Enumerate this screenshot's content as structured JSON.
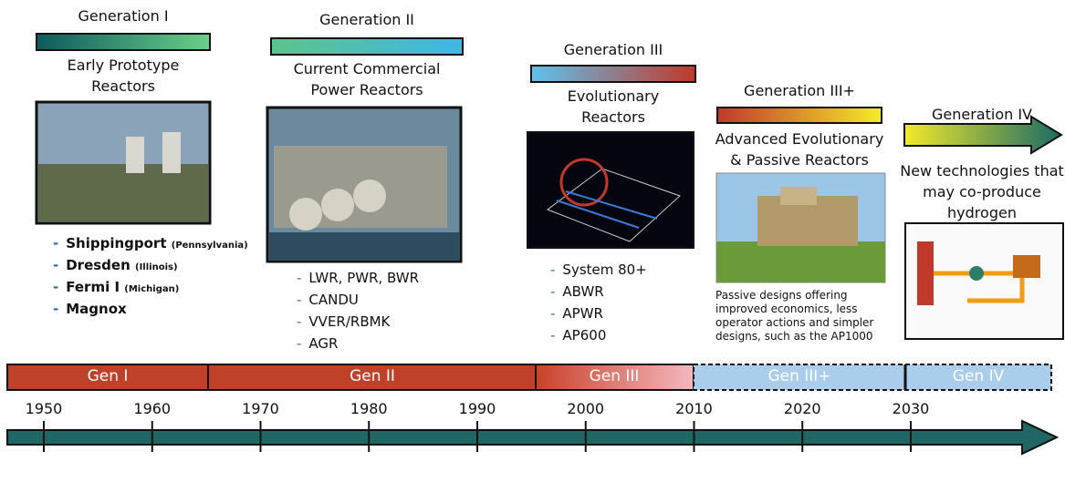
{
  "generations": [
    {
      "title": "Generation I",
      "subtitle": [
        "Early Prototype",
        "Reactors"
      ],
      "items": [
        {
          "name": "Shippingport",
          "note": "(Pennsylvania)"
        },
        {
          "name": "Dresden",
          "note": "(Illinois)"
        },
        {
          "name": "Fermi I",
          "note": "(Michigan)"
        },
        {
          "name": "Magnox"
        }
      ]
    },
    {
      "title": "Generation II",
      "subtitle": [
        "Current Commercial",
        "Power Reactors"
      ],
      "items": [
        {
          "name": "LWR, PWR, BWR"
        },
        {
          "name": "CANDU"
        },
        {
          "name": "VVER/RBMK"
        },
        {
          "name": "AGR"
        }
      ]
    },
    {
      "title": "Generation III",
      "subtitle": [
        "Evolutionary",
        "Reactors"
      ],
      "items": [
        {
          "name": "System 80+"
        },
        {
          "name": "ABWR"
        },
        {
          "name": "APWR"
        },
        {
          "name": "AP600"
        }
      ]
    },
    {
      "title": "Generation III+",
      "subtitle": [
        "Advanced Evolutionary",
        "& Passive Reactors"
      ],
      "description": [
        "Passive designs offering",
        "improved economics, less",
        "operator actions and simpler",
        "designs, such as the AP1000"
      ]
    },
    {
      "title": "Generation IV",
      "subtitle": [
        "New technologies that",
        "may co-produce",
        "hydrogen"
      ]
    }
  ],
  "timeline": {
    "eras": [
      "Gen I",
      "Gen II",
      "Gen III",
      "Gen III+",
      "Gen IV"
    ],
    "years": [
      1950,
      1960,
      1970,
      1980,
      1990,
      2000,
      2010,
      2020,
      2030
    ]
  }
}
